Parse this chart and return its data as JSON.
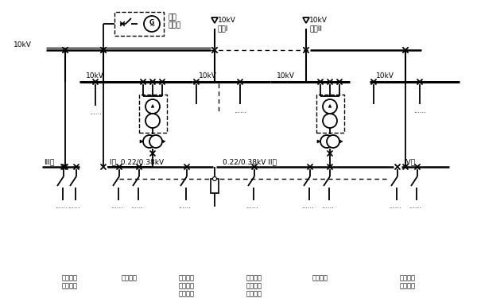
{
  "bg_color": "#ffffff",
  "labels": {
    "10kv_left": "10kV",
    "diesel": "柴油\n發電機",
    "src1_label": "10kV\n電源I",
    "src2_label": "10kV\n電源II",
    "bus1": "10kV",
    "bus2": "10kV",
    "bus3": "10kV",
    "bus4": "10kV",
    "seg3": "III段",
    "seg1": "I段  0.22/0.38kV",
    "seg2": "0.22/0.38kV II段",
    "seg4": "IV段",
    "load1": "消防負荷\n（工作）",
    "load2": "一般負荷",
    "load3": "非消防的\n保障負荷\n（備用）",
    "load4": "非消防的\n保障負荷\n（工作）",
    "load5": "一般負荷",
    "load6": "消防負荷\n（備用）"
  },
  "fs": 6.5
}
